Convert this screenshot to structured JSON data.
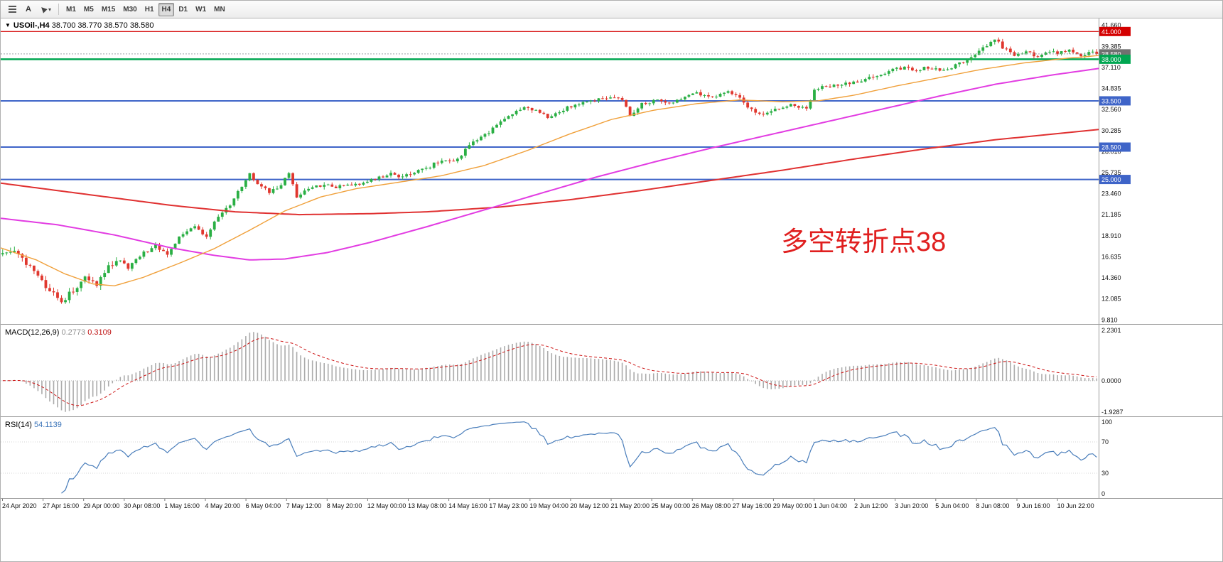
{
  "toolbar": {
    "text_tool": "A",
    "dropdown_caret": "▾",
    "timeframes": [
      "M1",
      "M5",
      "M15",
      "M30",
      "H1",
      "H4",
      "D1",
      "W1",
      "MN"
    ],
    "active_timeframe": "H4"
  },
  "chart": {
    "symbol_title": "USOil-,H4",
    "ohlc": "38.700 38.770 38.570 38.580",
    "oneclick_icon": "▼",
    "annotation": "多空转折点38",
    "top_axis_label": "41.660",
    "price_axis_labels": [
      "39.385",
      "37.110",
      "34.835",
      "32.560",
      "30.285",
      "28.010",
      "25.735",
      "23.460",
      "21.185",
      "18.910",
      "16.635",
      "14.360",
      "12.085",
      "9.810"
    ],
    "hlines": [
      {
        "value": 41.0,
        "label": "41.000",
        "color": "#d40000",
        "width": 1.2
      },
      {
        "value": 38.0,
        "label": "38.000",
        "color": "#00a651",
        "width": 2.5
      },
      {
        "value": 33.5,
        "label": "33.500",
        "color": "#3e64c8",
        "width": 2
      },
      {
        "value": 28.5,
        "label": "28.500",
        "color": "#3e64c8",
        "width": 2
      },
      {
        "value": 25.0,
        "label": "25.000",
        "color": "#3e64c8",
        "width": 2
      }
    ],
    "current_price": {
      "label": "38.580",
      "value": 38.58,
      "color": "#707070"
    }
  },
  "macd": {
    "name": "MACD(12,26,9)",
    "value_main": "0.2773",
    "value_signal": "0.3109",
    "axis_labels": [
      "2.2301",
      "0.0000",
      "-1.9287"
    ],
    "histogram_color": "#ababab",
    "signal_color": "#cc1111"
  },
  "rsi": {
    "name": "RSI(14)",
    "value": "54.1139",
    "axis_labels": [
      "100",
      "70",
      "30",
      "0"
    ],
    "levels": [
      70,
      30
    ],
    "color": "#4a7ebb"
  },
  "time_axis_labels": [
    "24 Apr 2020",
    "27 Apr 16:00",
    "29 Apr 00:00",
    "30 Apr 08:00",
    "1 May 16:00",
    "4 May 20:00",
    "6 May 04:00",
    "7 May 12:00",
    "8 May 20:00",
    "12 May 00:00",
    "13 May 08:00",
    "14 May 16:00",
    "17 May 23:00",
    "19 May 04:00",
    "20 May 12:00",
    "21 May 20:00",
    "25 May 00:00",
    "26 May 08:00",
    "27 May 16:00",
    "29 May 00:00",
    "1 Jun 04:00",
    "2 Jun 12:00",
    "3 Jun 20:00",
    "5 Jun 04:00",
    "8 Jun 08:00",
    "9 Jun 16:00",
    "10 Jun 22:00"
  ],
  "chart_data": {
    "type": "candlestick",
    "symbol": "USOil-",
    "timeframe": "H4",
    "candles_n": 280,
    "price_range": [
      9.45,
      42.1
    ],
    "up_color": "#2aaf44",
    "down_color": "#e0372e",
    "close_path": [
      [
        0,
        16.9
      ],
      [
        3,
        17.3
      ],
      [
        8,
        15.0
      ],
      [
        11,
        13.5
      ],
      [
        15,
        11.8
      ],
      [
        18,
        13.0
      ],
      [
        21,
        14.3
      ],
      [
        24,
        13.6
      ],
      [
        27,
        15.5
      ],
      [
        30,
        16.3
      ],
      [
        32,
        15.3
      ],
      [
        35,
        16.8
      ],
      [
        39,
        17.8
      ],
      [
        42,
        16.9
      ],
      [
        45,
        18.8
      ],
      [
        49,
        19.8
      ],
      [
        52,
        18.9
      ],
      [
        55,
        21.0
      ],
      [
        58,
        22.3
      ],
      [
        61,
        24.3
      ],
      [
        63,
        25.6
      ],
      [
        65,
        24.6
      ],
      [
        68,
        23.6
      ],
      [
        71,
        24.3
      ],
      [
        73,
        25.8
      ],
      [
        75,
        23.2
      ],
      [
        78,
        24.0
      ],
      [
        82,
        24.4
      ],
      [
        85,
        24.2
      ],
      [
        89,
        24.4
      ],
      [
        92,
        24.6
      ],
      [
        96,
        25.2
      ],
      [
        99,
        25.6
      ],
      [
        101,
        25.3
      ],
      [
        105,
        25.8
      ],
      [
        109,
        26.4
      ],
      [
        112,
        27.2
      ],
      [
        115,
        26.8
      ],
      [
        118,
        28.2
      ],
      [
        120,
        29.2
      ],
      [
        123,
        29.8
      ],
      [
        127,
        31.2
      ],
      [
        130,
        32.2
      ],
      [
        134,
        32.8
      ],
      [
        137,
        32.2
      ],
      [
        139,
        31.8
      ],
      [
        143,
        32.6
      ],
      [
        147,
        33.2
      ],
      [
        150,
        33.6
      ],
      [
        154,
        33.9
      ],
      [
        158,
        33.6
      ],
      [
        160,
        31.8
      ],
      [
        163,
        33.2
      ],
      [
        167,
        33.6
      ],
      [
        170,
        33.3
      ],
      [
        174,
        33.8
      ],
      [
        177,
        34.3
      ],
      [
        181,
        34.0
      ],
      [
        185,
        34.4
      ],
      [
        188,
        33.8
      ],
      [
        191,
        32.5
      ],
      [
        194,
        32.0
      ],
      [
        197,
        32.6
      ],
      [
        201,
        33.0
      ],
      [
        205,
        32.6
      ],
      [
        207,
        34.6
      ],
      [
        209,
        35.0
      ],
      [
        213,
        35.2
      ],
      [
        216,
        35.4
      ],
      [
        220,
        35.8
      ],
      [
        224,
        36.4
      ],
      [
        227,
        36.9
      ],
      [
        230,
        37.1
      ],
      [
        233,
        36.7
      ],
      [
        235,
        37.2
      ],
      [
        239,
        36.8
      ],
      [
        243,
        37.3
      ],
      [
        246,
        38.0
      ],
      [
        250,
        39.2
      ],
      [
        253,
        40.2
      ],
      [
        255,
        39.3
      ],
      [
        258,
        38.4
      ],
      [
        261,
        38.8
      ],
      [
        264,
        38.3
      ],
      [
        266,
        38.9
      ],
      [
        269,
        38.6
      ],
      [
        272,
        38.9
      ],
      [
        275,
        38.4
      ],
      [
        277,
        38.8
      ],
      [
        279,
        38.58
      ]
    ],
    "ma_lines": [
      {
        "name": "ma-red-slow",
        "color": "#e03131",
        "width": 2,
        "points": [
          [
            0,
            24.6
          ],
          [
            120,
            23.4
          ],
          [
            240,
            22.2
          ],
          [
            330,
            21.5
          ],
          [
            420,
            21.2
          ],
          [
            520,
            21.3
          ],
          [
            600,
            21.5
          ],
          [
            700,
            22.0
          ],
          [
            800,
            22.8
          ],
          [
            900,
            23.8
          ],
          [
            1000,
            24.9
          ],
          [
            1100,
            26.0
          ],
          [
            1200,
            27.2
          ],
          [
            1300,
            28.3
          ],
          [
            1400,
            29.3
          ],
          [
            1545,
            30.4
          ]
        ]
      },
      {
        "name": "ma-magenta-mid",
        "color": "#e23ce2",
        "width": 2,
        "points": [
          [
            0,
            20.8
          ],
          [
            80,
            20.1
          ],
          [
            160,
            19.0
          ],
          [
            240,
            17.6
          ],
          [
            300,
            16.8
          ],
          [
            350,
            16.3
          ],
          [
            400,
            16.4
          ],
          [
            460,
            17.1
          ],
          [
            520,
            18.2
          ],
          [
            600,
            19.9
          ],
          [
            680,
            21.7
          ],
          [
            760,
            23.5
          ],
          [
            840,
            25.3
          ],
          [
            920,
            26.9
          ],
          [
            1000,
            28.4
          ],
          [
            1080,
            29.8
          ],
          [
            1160,
            31.2
          ],
          [
            1240,
            32.6
          ],
          [
            1320,
            34.0
          ],
          [
            1400,
            35.3
          ],
          [
            1480,
            36.3
          ],
          [
            1545,
            37.0
          ]
        ]
      },
      {
        "name": "ma-orange-fast",
        "color": "#f0a03a",
        "width": 1.4,
        "points": [
          [
            0,
            17.6
          ],
          [
            50,
            16.3
          ],
          [
            90,
            14.8
          ],
          [
            130,
            13.7
          ],
          [
            160,
            13.5
          ],
          [
            200,
            14.4
          ],
          [
            250,
            15.9
          ],
          [
            300,
            17.5
          ],
          [
            350,
            19.5
          ],
          [
            400,
            21.6
          ],
          [
            450,
            23.1
          ],
          [
            500,
            24.0
          ],
          [
            560,
            24.7
          ],
          [
            620,
            25.4
          ],
          [
            680,
            26.5
          ],
          [
            740,
            28.1
          ],
          [
            800,
            29.9
          ],
          [
            860,
            31.5
          ],
          [
            920,
            32.5
          ],
          [
            980,
            33.2
          ],
          [
            1040,
            33.6
          ],
          [
            1100,
            33.4
          ],
          [
            1150,
            33.5
          ],
          [
            1200,
            34.1
          ],
          [
            1260,
            35.1
          ],
          [
            1320,
            36.0
          ],
          [
            1380,
            36.9
          ],
          [
            1440,
            37.6
          ],
          [
            1500,
            38.1
          ],
          [
            1545,
            38.4
          ]
        ]
      }
    ]
  }
}
